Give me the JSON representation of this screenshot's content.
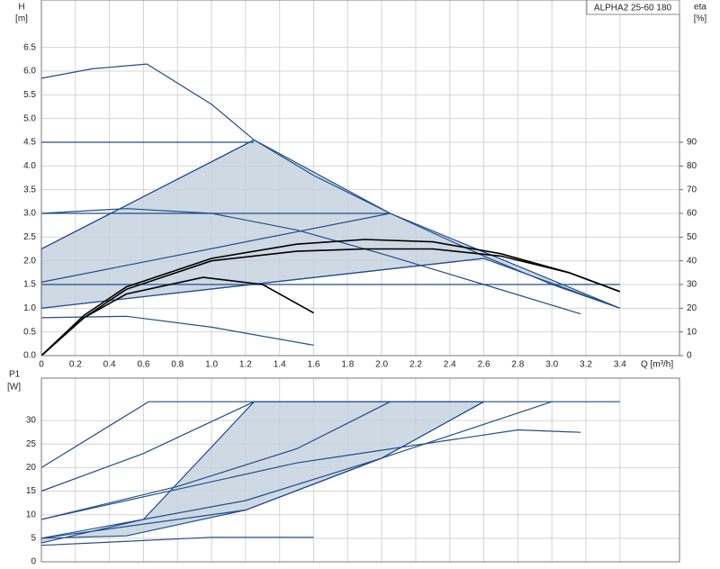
{
  "chart_data": [
    {
      "type": "line",
      "title": "ALPHA2 25-60 180",
      "ylabel": "H",
      "yunit": "[m]",
      "y2label": "eta",
      "y2unit": "[%]",
      "xlabel": "Q [m³/h]",
      "xlim": [
        0,
        3.75
      ],
      "ylim": [
        0,
        7.5
      ],
      "y2lim": [
        0,
        150
      ],
      "grid": true,
      "xticks": [
        0,
        0.2,
        0.4,
        0.6,
        0.8,
        {
          "value": 1,
          "label": "1.0"
        },
        1.2,
        1.4,
        1.6,
        1.8,
        {
          "value": 2,
          "label": "2.0"
        },
        2.2,
        2.4,
        2.6,
        2.8,
        {
          "value": 3,
          "label": "3.0"
        },
        3.2,
        3.4
      ],
      "yticks": [
        {
          "value": 0,
          "label": "0.0"
        },
        0.5,
        {
          "value": 1,
          "label": "1.0"
        },
        1.5,
        {
          "value": 2,
          "label": "2.0"
        },
        2.5,
        {
          "value": 3,
          "label": "3.0"
        },
        3.5,
        {
          "value": 4,
          "label": "4.0"
        },
        4.5,
        {
          "value": 5,
          "label": "5.0"
        },
        5.5,
        {
          "value": 6,
          "label": "6.0"
        },
        6.5
      ],
      "y2ticks": [
        0,
        10,
        20,
        30,
        40,
        50,
        60,
        70,
        80,
        90
      ],
      "series": [
        {
          "color": "#1f4e8c",
          "fill": "#c3d0dd",
          "x": [
            0,
            0,
            1.25,
            2.05,
            3.4,
            2.6
          ],
          "values": [
            1.0,
            2.25,
            4.55,
            3.0,
            1.0,
            2.05
          ]
        },
        {
          "color": "#1f4e8c",
          "x": [
            0,
            0.3,
            0.62,
            1.0,
            1.25,
            1.6,
            2.05,
            2.6,
            3.0,
            3.4
          ],
          "values": [
            5.85,
            6.05,
            6.15,
            5.3,
            4.55,
            3.8,
            3.0,
            2.1,
            1.5,
            1.0
          ]
        },
        {
          "color": "#1f4e8c",
          "x": [
            0,
            1.25
          ],
          "values": [
            4.5,
            4.5
          ]
        },
        {
          "color": "#1f4e8c",
          "x": [
            0,
            2.05
          ],
          "values": [
            3.0,
            3.0
          ]
        },
        {
          "color": "#1f4e8c",
          "x": [
            0,
            3.4
          ],
          "values": [
            1.5,
            1.5
          ]
        },
        {
          "color": "#1f4e8c",
          "x": [
            0,
            1.25
          ],
          "values": [
            2.25,
            4.55
          ]
        },
        {
          "color": "#1f4e8c",
          "x": [
            0,
            2.05
          ],
          "values": [
            1.55,
            3.0
          ]
        },
        {
          "color": "#1f4e8c",
          "x": [
            0,
            2.6
          ],
          "values": [
            1.0,
            2.05
          ]
        },
        {
          "color": "#1f4e8c",
          "x": [
            0,
            0.5,
            1.0,
            1.5,
            2.0,
            2.6,
            3.17
          ],
          "values": [
            3.0,
            3.1,
            3.0,
            2.65,
            2.15,
            1.5,
            0.88
          ]
        },
        {
          "color": "#1f4e8c",
          "x": [
            0,
            0.5,
            1.0,
            1.6
          ],
          "values": [
            0.8,
            0.83,
            0.6,
            0.22
          ]
        },
        {
          "color": "#000000",
          "axis": "y2",
          "x": [
            0,
            0.25,
            0.5,
            1.0,
            1.5,
            1.9,
            2.3,
            2.7,
            3.1,
            3.4
          ],
          "values": [
            0,
            17,
            29,
            41,
            47,
            49,
            48,
            43,
            35,
            27
          ]
        },
        {
          "color": "#000000",
          "axis": "y2",
          "x": [
            0,
            0.25,
            0.5,
            1.0,
            1.5,
            1.9,
            2.3,
            2.7,
            3.1,
            3.4
          ],
          "values": [
            0,
            16,
            28,
            40,
            44,
            45,
            45,
            42,
            35,
            27
          ]
        },
        {
          "color": "#000000",
          "axis": "y2",
          "x": [
            0,
            0.25,
            0.5,
            0.95,
            1.3,
            1.6
          ],
          "values": [
            0,
            16,
            26,
            33,
            30,
            18
          ]
        }
      ]
    },
    {
      "type": "line",
      "ylabel": "P1",
      "yunit": "[W]",
      "xlim": [
        0,
        3.75
      ],
      "ylim": [
        0,
        39
      ],
      "grid": true,
      "yticks": [
        0,
        5,
        10,
        15,
        20,
        25,
        30
      ],
      "series": [
        {
          "color": "#1f4e8c",
          "fill": "#c3d0dd",
          "x": [
            0,
            0.6,
            1.25,
            2.6,
            2.0,
            1.2,
            0.5,
            0
          ],
          "values": [
            4,
            9,
            34,
            34,
            22,
            11,
            5.5,
            5
          ]
        },
        {
          "color": "#1f4e8c",
          "x": [
            0,
            0.63,
            3.4
          ],
          "values": [
            20,
            34,
            34
          ]
        },
        {
          "color": "#1f4e8c",
          "x": [
            0,
            0.6,
            1.25
          ],
          "values": [
            15,
            23,
            34
          ]
        },
        {
          "color": "#1f4e8c",
          "x": [
            0,
            0.8,
            1.5,
            2.05
          ],
          "values": [
            9,
            16,
            24,
            34
          ]
        },
        {
          "color": "#1f4e8c",
          "x": [
            0,
            1.2,
            2.0,
            2.6
          ],
          "values": [
            5,
            13,
            22,
            34
          ]
        },
        {
          "color": "#1f4e8c",
          "x": [
            0,
            1.5,
            2.8,
            3.17
          ],
          "values": [
            9,
            21,
            28,
            27.5
          ]
        },
        {
          "color": "#1f4e8c",
          "x": [
            0,
            1.2,
            2.0,
            3.0
          ],
          "values": [
            5,
            11,
            22,
            34
          ]
        },
        {
          "color": "#1f4e8c",
          "x": [
            0,
            1.0,
            1.6
          ],
          "values": [
            3.5,
            5.2,
            5.2
          ]
        }
      ]
    }
  ]
}
